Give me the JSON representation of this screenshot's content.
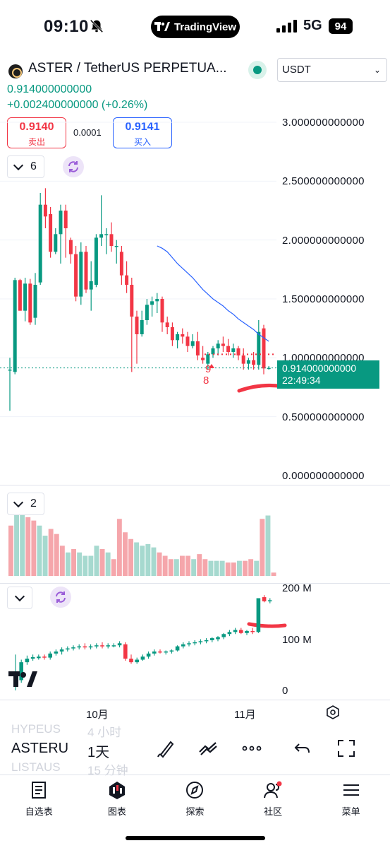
{
  "status_bar": {
    "time": "09:10",
    "app_pill": "TradingView",
    "network": "5G",
    "battery": "94"
  },
  "header": {
    "title": "ASTER / TetherUS PERPETUA...",
    "currency": "USDT",
    "last_price": "0.914000000000",
    "change": "+0.002400000000 (+0.26%)"
  },
  "order": {
    "sell_price": "0.9140",
    "sell_label": "卖出",
    "spread": "0.0001",
    "buy_price": "0.9141",
    "buy_label": "买入"
  },
  "indicator_chips": {
    "main_count": "6",
    "volume_count": "2"
  },
  "price_axis": [
    "3.000000000000",
    "2.500000000000",
    "2.000000000000",
    "1.500000000000",
    "1.000000000000",
    "0.500000000000",
    "0.000000000000"
  ],
  "last_price_tag": {
    "price": "0.914000000000",
    "countdown": "22:49:34"
  },
  "markers": {
    "red_marker": "9",
    "red_count": "8"
  },
  "volume_axis": [
    "200 M",
    "100 M",
    "0"
  ],
  "date_axis": [
    "10月",
    "11月"
  ],
  "toolbar": {
    "prev_symbol": "HYPEUS",
    "prev_tf": "4 小时",
    "symbol": "ASTERU",
    "timeframe": "1天",
    "next_symbol": "LISTAUS",
    "next_tf": "15 分钟"
  },
  "nav": [
    {
      "label": "自选表",
      "icon": "watchlist-icon"
    },
    {
      "label": "图表",
      "icon": "chart-icon"
    },
    {
      "label": "探索",
      "icon": "compass-icon"
    },
    {
      "label": "社区",
      "icon": "community-icon"
    },
    {
      "label": "菜单",
      "icon": "menu-icon"
    }
  ],
  "colors": {
    "up": "#089981",
    "down": "#f23645",
    "up_vol": "#a6d9cf",
    "down_vol": "#f5a6ab",
    "ma": "#2962ff"
  },
  "chart_data": {
    "type": "candlestick",
    "price_axis_range": [
      0,
      3.0
    ],
    "candles": [
      {
        "o": 0.9,
        "h": 1.0,
        "l": 0.55,
        "c": 0.9
      },
      {
        "o": 0.88,
        "h": 1.68,
        "l": 0.86,
        "c": 1.66
      },
      {
        "o": 1.66,
        "h": 1.67,
        "l": 1.4,
        "c": 1.4
      },
      {
        "o": 1.4,
        "h": 1.68,
        "l": 1.31,
        "c": 1.63
      },
      {
        "o": 1.63,
        "h": 1.67,
        "l": 1.28,
        "c": 1.3
      },
      {
        "o": 1.34,
        "h": 1.72,
        "l": 1.28,
        "c": 1.62
      },
      {
        "o": 1.64,
        "h": 2.4,
        "l": 1.62,
        "c": 2.3
      },
      {
        "o": 2.3,
        "h": 2.44,
        "l": 2.1,
        "c": 2.2
      },
      {
        "o": 2.22,
        "h": 2.28,
        "l": 1.85,
        "c": 1.9
      },
      {
        "o": 1.9,
        "h": 2.1,
        "l": 1.88,
        "c": 2.05
      },
      {
        "o": 2.05,
        "h": 2.3,
        "l": 1.8,
        "c": 2.25
      },
      {
        "o": 2.25,
        "h": 2.3,
        "l": 1.85,
        "c": 2.1
      },
      {
        "o": 2.0,
        "h": 2.02,
        "l": 1.8,
        "c": 1.88
      },
      {
        "o": 1.88,
        "h": 1.95,
        "l": 1.48,
        "c": 1.52
      },
      {
        "o": 1.52,
        "h": 1.98,
        "l": 1.45,
        "c": 1.9
      },
      {
        "o": 1.9,
        "h": 1.95,
        "l": 1.55,
        "c": 1.58
      },
      {
        "o": 1.58,
        "h": 1.82,
        "l": 1.4,
        "c": 1.65
      },
      {
        "o": 1.62,
        "h": 2.05,
        "l": 1.6,
        "c": 2.02
      },
      {
        "o": 2.02,
        "h": 2.38,
        "l": 1.95,
        "c": 2.05
      },
      {
        "o": 2.05,
        "h": 2.1,
        "l": 1.88,
        "c": 2.05
      },
      {
        "o": 2.05,
        "h": 2.15,
        "l": 1.9,
        "c": 1.95
      },
      {
        "o": 1.95,
        "h": 2.0,
        "l": 1.8,
        "c": 1.95
      },
      {
        "o": 1.9,
        "h": 1.95,
        "l": 1.62,
        "c": 1.7
      },
      {
        "o": 1.7,
        "h": 1.82,
        "l": 1.55,
        "c": 1.62
      },
      {
        "o": 1.62,
        "h": 1.68,
        "l": 0.88,
        "c": 1.35
      },
      {
        "o": 1.35,
        "h": 1.4,
        "l": 0.95,
        "c": 1.2
      },
      {
        "o": 1.2,
        "h": 1.4,
        "l": 1.18,
        "c": 1.32
      },
      {
        "o": 1.32,
        "h": 1.5,
        "l": 1.28,
        "c": 1.45
      },
      {
        "o": 1.45,
        "h": 1.52,
        "l": 1.35,
        "c": 1.48
      },
      {
        "o": 1.48,
        "h": 1.55,
        "l": 1.38,
        "c": 1.5
      },
      {
        "o": 1.5,
        "h": 1.52,
        "l": 1.22,
        "c": 1.3
      },
      {
        "o": 1.3,
        "h": 1.35,
        "l": 1.2,
        "c": 1.26
      },
      {
        "o": 1.26,
        "h": 1.3,
        "l": 1.1,
        "c": 1.15
      },
      {
        "o": 1.15,
        "h": 1.22,
        "l": 1.08,
        "c": 1.2
      },
      {
        "o": 1.2,
        "h": 1.25,
        "l": 1.12,
        "c": 1.18
      },
      {
        "o": 1.18,
        "h": 1.22,
        "l": 1.05,
        "c": 1.1
      },
      {
        "o": 1.1,
        "h": 1.2,
        "l": 1.08,
        "c": 1.14
      },
      {
        "o": 1.14,
        "h": 1.22,
        "l": 0.98,
        "c": 1.02
      },
      {
        "o": 1.0,
        "h": 1.1,
        "l": 0.95,
        "c": 0.98
      },
      {
        "o": 0.95,
        "h": 1.05,
        "l": 0.9,
        "c": 1.03
      },
      {
        "o": 1.03,
        "h": 1.1,
        "l": 1.0,
        "c": 1.08
      },
      {
        "o": 1.08,
        "h": 1.15,
        "l": 1.02,
        "c": 1.12
      },
      {
        "o": 1.12,
        "h": 1.18,
        "l": 1.05,
        "c": 1.1
      },
      {
        "o": 1.1,
        "h": 1.16,
        "l": 1.02,
        "c": 1.05
      },
      {
        "o": 1.05,
        "h": 1.12,
        "l": 1.0,
        "c": 1.08
      },
      {
        "o": 1.08,
        "h": 1.1,
        "l": 0.98,
        "c": 1.02
      },
      {
        "o": 1.02,
        "h": 1.08,
        "l": 0.9,
        "c": 0.95
      },
      {
        "o": 0.95,
        "h": 1.0,
        "l": 0.9,
        "c": 0.98
      },
      {
        "o": 0.98,
        "h": 1.05,
        "l": 0.9,
        "c": 0.94
      },
      {
        "o": 0.94,
        "h": 1.32,
        "l": 0.9,
        "c": 1.22
      },
      {
        "o": 1.25,
        "h": 1.28,
        "l": 0.86,
        "c": 0.91
      },
      {
        "o": 0.91,
        "h": 0.93,
        "l": 0.9,
        "c": 0.914
      }
    ],
    "ma": [
      1.95,
      1.93,
      1.9,
      1.85,
      1.8,
      1.76,
      1.72,
      1.68,
      1.63,
      1.58,
      1.54,
      1.5,
      1.47,
      1.44,
      1.4,
      1.37,
      1.33,
      1.3,
      1.27,
      1.24,
      1.2,
      1.17,
      1.14
    ],
    "ma_start_index": 29,
    "volume": {
      "axis_range": [
        0,
        40
      ],
      "bars": [
        30,
        40,
        38,
        35,
        33,
        30,
        24,
        28,
        25,
        18,
        14,
        16,
        14,
        12,
        12,
        18,
        16,
        14,
        10,
        34,
        26,
        22,
        20,
        18,
        19,
        17,
        14,
        12,
        10,
        10,
        12,
        12,
        10,
        13,
        10,
        9,
        9,
        9,
        8,
        8,
        9,
        9,
        10,
        9,
        34,
        36,
        2
      ]
    },
    "second_pane": {
      "type": "candlestick",
      "axis_range": [
        0,
        200
      ],
      "candles": [
        {
          "o": 20,
          "h": 70,
          "l": 0,
          "c": 20
        },
        {
          "o": 20,
          "h": 60,
          "l": 15,
          "c": 55
        },
        {
          "o": 55,
          "h": 68,
          "l": 50,
          "c": 62
        },
        {
          "o": 62,
          "h": 70,
          "l": 58,
          "c": 65
        },
        {
          "o": 63,
          "h": 70,
          "l": 60,
          "c": 66
        },
        {
          "o": 66,
          "h": 70,
          "l": 60,
          "c": 64
        },
        {
          "o": 64,
          "h": 76,
          "l": 60,
          "c": 72
        },
        {
          "o": 72,
          "h": 80,
          "l": 68,
          "c": 76
        },
        {
          "o": 76,
          "h": 84,
          "l": 70,
          "c": 80
        },
        {
          "o": 80,
          "h": 86,
          "l": 76,
          "c": 82
        },
        {
          "o": 82,
          "h": 88,
          "l": 78,
          "c": 84
        },
        {
          "o": 84,
          "h": 90,
          "l": 80,
          "c": 86
        },
        {
          "o": 86,
          "h": 92,
          "l": 80,
          "c": 84
        },
        {
          "o": 84,
          "h": 90,
          "l": 80,
          "c": 86
        },
        {
          "o": 86,
          "h": 92,
          "l": 82,
          "c": 88
        },
        {
          "o": 88,
          "h": 94,
          "l": 82,
          "c": 86
        },
        {
          "o": 86,
          "h": 92,
          "l": 82,
          "c": 88
        },
        {
          "o": 88,
          "h": 92,
          "l": 84,
          "c": 88
        },
        {
          "o": 88,
          "h": 96,
          "l": 84,
          "c": 92
        },
        {
          "o": 90,
          "h": 94,
          "l": 58,
          "c": 62
        },
        {
          "o": 62,
          "h": 70,
          "l": 52,
          "c": 55
        },
        {
          "o": 55,
          "h": 64,
          "l": 52,
          "c": 60
        },
        {
          "o": 60,
          "h": 70,
          "l": 58,
          "c": 66
        },
        {
          "o": 66,
          "h": 76,
          "l": 62,
          "c": 72
        },
        {
          "o": 72,
          "h": 80,
          "l": 68,
          "c": 76
        },
        {
          "o": 76,
          "h": 80,
          "l": 72,
          "c": 74
        },
        {
          "o": 74,
          "h": 78,
          "l": 70,
          "c": 76
        },
        {
          "o": 76,
          "h": 80,
          "l": 72,
          "c": 78
        },
        {
          "o": 78,
          "h": 88,
          "l": 76,
          "c": 86
        },
        {
          "o": 86,
          "h": 94,
          "l": 82,
          "c": 90
        },
        {
          "o": 90,
          "h": 96,
          "l": 86,
          "c": 92
        },
        {
          "o": 92,
          "h": 98,
          "l": 88,
          "c": 94
        },
        {
          "o": 94,
          "h": 100,
          "l": 90,
          "c": 96
        },
        {
          "o": 96,
          "h": 102,
          "l": 92,
          "c": 98
        },
        {
          "o": 98,
          "h": 104,
          "l": 94,
          "c": 102
        },
        {
          "o": 100,
          "h": 106,
          "l": 96,
          "c": 104
        },
        {
          "o": 104,
          "h": 112,
          "l": 100,
          "c": 110
        },
        {
          "o": 110,
          "h": 118,
          "l": 106,
          "c": 114
        },
        {
          "o": 114,
          "h": 122,
          "l": 110,
          "c": 118
        },
        {
          "o": 118,
          "h": 122,
          "l": 110,
          "c": 112
        },
        {
          "o": 112,
          "h": 118,
          "l": 108,
          "c": 116
        },
        {
          "o": 116,
          "h": 122,
          "l": 110,
          "c": 114
        },
        {
          "o": 114,
          "h": 180,
          "l": 112,
          "c": 180
        },
        {
          "o": 182,
          "h": 186,
          "l": 172,
          "c": 174
        },
        {
          "o": 174,
          "h": 180,
          "l": 170,
          "c": 176
        }
      ]
    },
    "x_ticks": [
      "10月",
      "11月"
    ]
  }
}
